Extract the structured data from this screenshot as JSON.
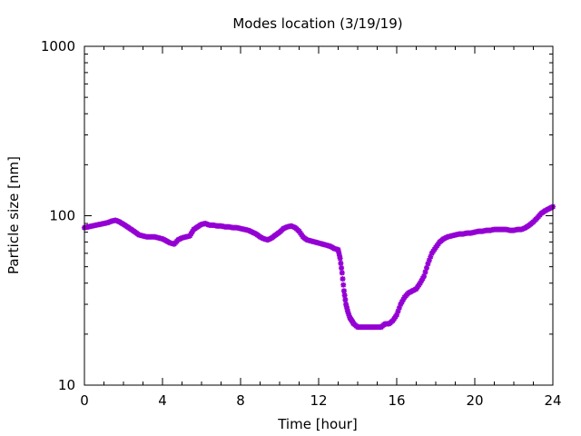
{
  "chart_data": {
    "type": "scatter",
    "title": "Modes location (3/19/19)",
    "xlabel": "Time [hour]",
    "ylabel": "Particle size [nm]",
    "xlim": [
      0,
      24
    ],
    "ylim": [
      10,
      1000
    ],
    "yscale": "log",
    "grid": false,
    "legend": "none",
    "xticks": [
      0,
      4,
      8,
      12,
      16,
      20,
      24
    ],
    "xtick_labels": [
      "0",
      "4",
      "8",
      "12",
      "16",
      "20",
      "24"
    ],
    "yticks": [
      10,
      100,
      1000
    ],
    "ytick_labels": [
      "10",
      "100",
      "1000"
    ],
    "marker_color": "#9400d3",
    "series": [
      {
        "x": [
          0,
          0.2,
          0.4,
          0.6,
          0.8,
          1.0,
          1.2,
          1.4,
          1.6,
          1.8,
          2.0,
          2.2,
          2.4,
          2.6,
          2.8,
          3.0,
          3.2,
          3.4,
          3.6,
          3.8,
          4.0,
          4.2,
          4.4,
          4.6,
          4.8,
          5.0,
          5.2,
          5.4,
          5.6,
          5.8,
          6.0,
          6.2,
          6.4,
          6.6,
          6.8,
          7.0,
          7.2,
          7.4,
          7.6,
          7.8,
          8.0,
          8.2,
          8.4,
          8.6,
          8.8,
          9.0,
          9.2,
          9.4,
          9.6,
          9.8,
          10.0,
          10.2,
          10.4,
          10.6,
          10.8,
          11.0,
          11.2,
          11.4,
          11.6,
          11.8,
          12.0,
          12.2,
          12.4,
          12.6,
          12.8,
          13.0,
          13.1,
          13.2,
          13.3,
          13.4,
          13.5,
          13.6,
          13.7,
          13.8,
          14.0,
          14.2,
          14.4,
          14.6,
          14.8,
          15.0,
          15.2,
          15.4,
          15.6,
          15.8,
          16.0,
          16.2,
          16.4,
          16.6,
          16.8,
          17.0,
          17.2,
          17.4,
          17.6,
          17.8,
          18.0,
          18.2,
          18.4,
          18.6,
          18.8,
          19.0,
          19.2,
          19.4,
          19.6,
          19.8,
          20.0,
          20.2,
          20.4,
          20.6,
          20.8,
          21.0,
          21.2,
          21.4,
          21.6,
          21.8,
          22.0,
          22.2,
          22.4,
          22.6,
          22.8,
          23.0,
          23.2,
          23.4,
          23.6,
          23.8,
          24.0
        ],
        "y": [
          85,
          86,
          87,
          88,
          89,
          90,
          91,
          93,
          94,
          92,
          89,
          86,
          83,
          80,
          77,
          76,
          75,
          75,
          75,
          74,
          73,
          71,
          69,
          68,
          72,
          74,
          75,
          76,
          83,
          86,
          89,
          90,
          88,
          88,
          87,
          87,
          86,
          86,
          85,
          85,
          84,
          83,
          82,
          80,
          78,
          75,
          73,
          72,
          74,
          77,
          80,
          84,
          86,
          87,
          85,
          81,
          75,
          72,
          71,
          70,
          69,
          68,
          67,
          66,
          64,
          63,
          56,
          46,
          36,
          30,
          27,
          25,
          24,
          23,
          22,
          22,
          22,
          22,
          22,
          22,
          22,
          23,
          23,
          24,
          26,
          30,
          33,
          35,
          36,
          37,
          40,
          44,
          52,
          60,
          65,
          70,
          73,
          75,
          76,
          77,
          78,
          78,
          79,
          79,
          80,
          81,
          81,
          82,
          82,
          83,
          83,
          83,
          83,
          82,
          82,
          83,
          83,
          85,
          88,
          92,
          97,
          103,
          107,
          110,
          113
        ]
      }
    ]
  }
}
